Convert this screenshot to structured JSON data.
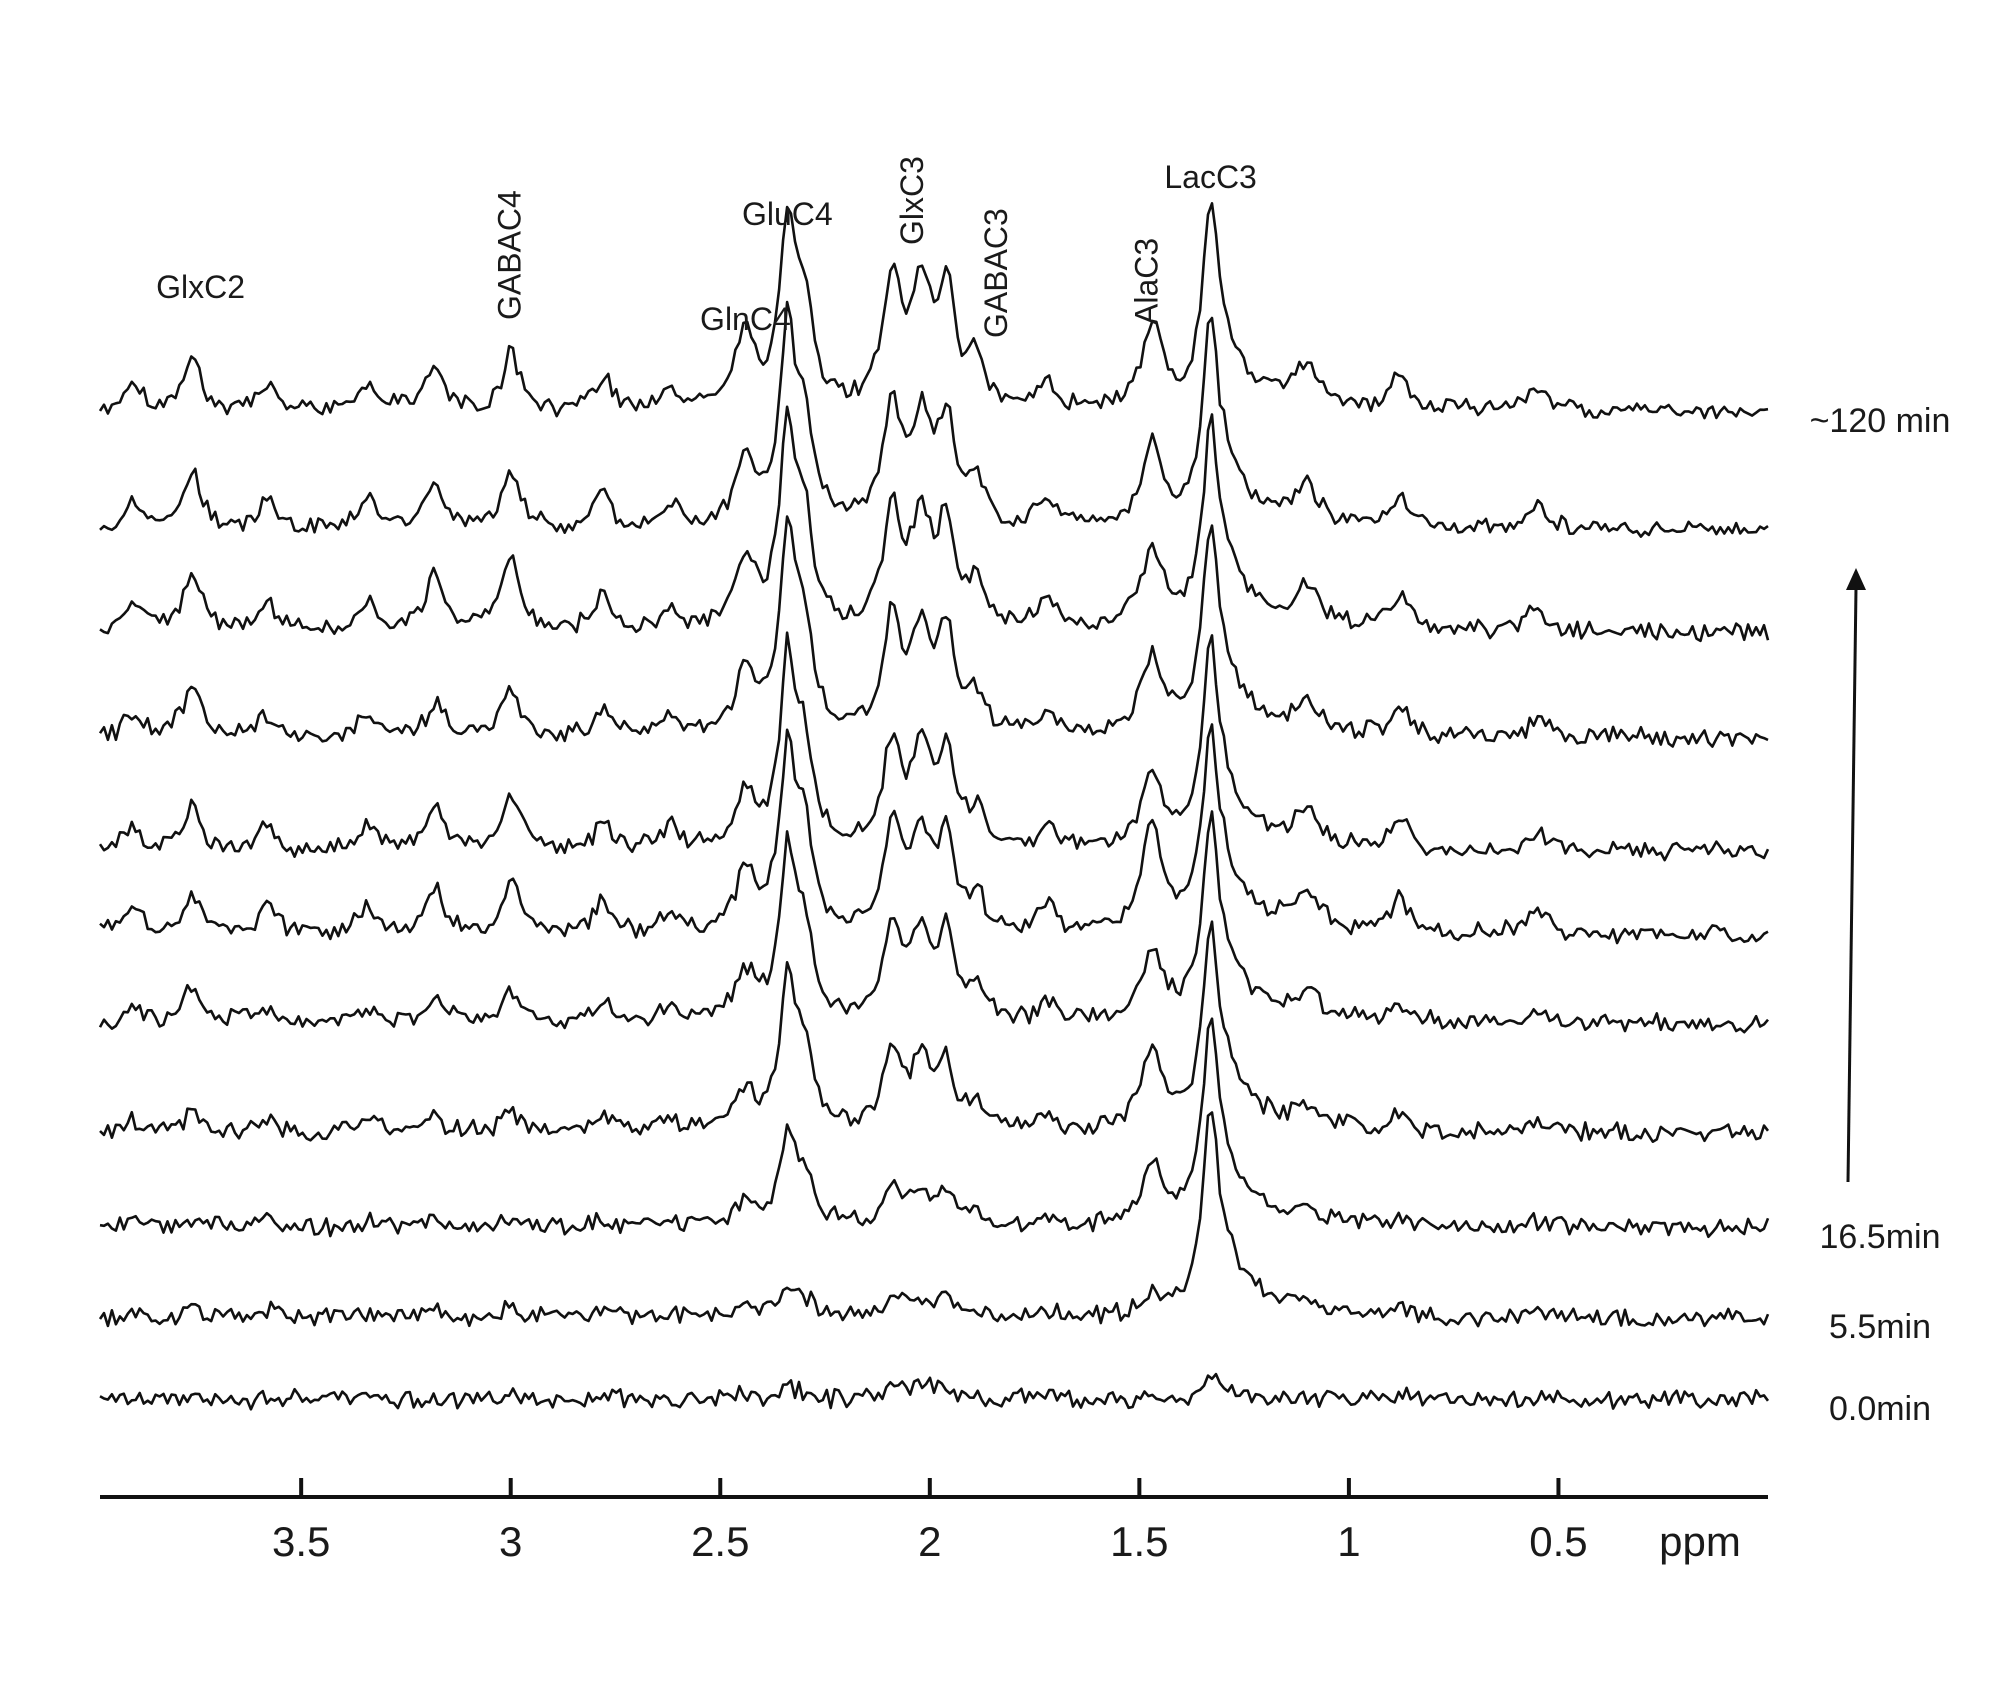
{
  "chart_data": {
    "type": "line",
    "subtype": "stacked NMR spectra (time series)",
    "x_unit_label": "ppm",
    "x_reversed": true,
    "xlim": [
      3.98,
      0.0
    ],
    "x_ticks": [
      {
        "value": 3.5,
        "label": "3.5"
      },
      {
        "value": 3.0,
        "label": "3"
      },
      {
        "value": 2.5,
        "label": "2.5"
      },
      {
        "value": 2.0,
        "label": "2"
      },
      {
        "value": 1.5,
        "label": "1.5"
      },
      {
        "value": 1.0,
        "label": "1"
      },
      {
        "value": 0.5,
        "label": "0.5"
      }
    ],
    "time_labels": [
      {
        "spectrum_index": 0,
        "label": "0.0min"
      },
      {
        "spectrum_index": 1,
        "label": "5.5min"
      },
      {
        "spectrum_index": 2,
        "label": "16.5min"
      },
      {
        "spectrum_index": 10,
        "label": "~120 min"
      }
    ],
    "time_arrow": "up",
    "peak_annotations": [
      {
        "label": "GlxC2",
        "ppm": 3.74,
        "rotated": false
      },
      {
        "label": "GABAC4",
        "ppm": 3.0,
        "rotated": true
      },
      {
        "label": "GlnC4",
        "ppm": 2.44,
        "rotated": false
      },
      {
        "label": "GluC4",
        "ppm": 2.34,
        "rotated": false
      },
      {
        "label": "GlxC3",
        "ppm": 2.04,
        "rotated": true
      },
      {
        "label": "GABAC3",
        "ppm": 1.84,
        "rotated": true
      },
      {
        "label": "AlaC3",
        "ppm": 1.48,
        "rotated": true
      },
      {
        "label": "LacC3",
        "ppm": 1.33,
        "rotated": false
      }
    ],
    "series": [
      {
        "time": "0.0min",
        "amplitudes": {
          "LacC3": 0.12,
          "GluC4": 0.05,
          "GlnC4": 0.03,
          "GlxC3": 0.08,
          "GlxC2": 0.02,
          "GABAC4": 0.02,
          "GABAC3": 0.02,
          "AlaC3": 0.03,
          "Misc": 0.03
        }
      },
      {
        "time": "5.5min",
        "amplitudes": {
          "LacC3": 1.0,
          "GluC4": 0.15,
          "GlnC4": 0.05,
          "GlxC3": 0.1,
          "GlxC2": 0.06,
          "GABAC4": 0.05,
          "GABAC3": 0.04,
          "AlaC3": 0.1,
          "Misc": 0.05
        }
      },
      {
        "time": "",
        "amplitudes": {
          "LacC3": 1.0,
          "GluC4": 0.45,
          "GlnC4": 0.12,
          "GlxC3": 0.2,
          "GlxC2": 0.05,
          "GABAC4": 0.05,
          "GABAC3": 0.08,
          "AlaC3": 0.3,
          "Misc": 0.06
        }
      },
      {
        "time": "",
        "amplitudes": {
          "LacC3": 1.0,
          "GluC4": 0.75,
          "GlnC4": 0.22,
          "GlxC3": 0.4,
          "GlxC2": 0.1,
          "GABAC4": 0.1,
          "GABAC3": 0.12,
          "AlaC3": 0.42,
          "Misc": 0.12
        }
      },
      {
        "time": "",
        "amplitudes": {
          "LacC3": 1.0,
          "GluC4": 0.85,
          "GlnC4": 0.25,
          "GlxC3": 0.5,
          "GlxC2": 0.2,
          "GABAC4": 0.18,
          "GABAC3": 0.15,
          "AlaC3": 0.38,
          "Misc": 0.15
        }
      },
      {
        "time": "",
        "amplitudes": {
          "LacC3": 1.0,
          "GluC4": 0.9,
          "GlnC4": 0.3,
          "GlxC3": 0.55,
          "GlxC2": 0.2,
          "GABAC4": 0.3,
          "GABAC3": 0.18,
          "AlaC3": 0.55,
          "Misc": 0.25
        }
      },
      {
        "time": "",
        "amplitudes": {
          "LacC3": 1.0,
          "GluC4": 0.95,
          "GlnC4": 0.3,
          "GlxC3": 0.55,
          "GlxC2": 0.25,
          "GABAC4": 0.3,
          "GABAC3": 0.2,
          "AlaC3": 0.4,
          "Misc": 0.22
        }
      },
      {
        "time": "",
        "amplitudes": {
          "LacC3": 1.0,
          "GluC4": 1.0,
          "GlnC4": 0.35,
          "GlxC3": 0.6,
          "GlxC2": 0.3,
          "GABAC4": 0.25,
          "GABAC3": 0.2,
          "AlaC3": 0.42,
          "Misc": 0.2
        }
      },
      {
        "time": "",
        "amplitudes": {
          "LacC3": 1.0,
          "GluC4": 1.0,
          "GlnC4": 0.35,
          "GlxC3": 0.62,
          "GlxC2": 0.32,
          "GABAC4": 0.4,
          "GABAC3": 0.25,
          "AlaC3": 0.42,
          "Misc": 0.25
        }
      },
      {
        "time": "",
        "amplitudes": {
          "LacC3": 1.0,
          "GluC4": 1.0,
          "GlnC4": 0.35,
          "GlxC3": 0.62,
          "GlxC2": 0.3,
          "GABAC4": 0.3,
          "GABAC3": 0.25,
          "AlaC3": 0.42,
          "Misc": 0.25
        }
      },
      {
        "time": "~120 min",
        "amplitudes": {
          "LacC3": 1.0,
          "GluC4": 0.95,
          "GlnC4": 0.4,
          "GlxC3": 0.7,
          "GlxC2": 0.3,
          "GABAC4": 0.3,
          "GABAC3": 0.25,
          "AlaC3": 0.42,
          "Misc": 0.25
        }
      }
    ],
    "grid": false,
    "legend": "none"
  }
}
